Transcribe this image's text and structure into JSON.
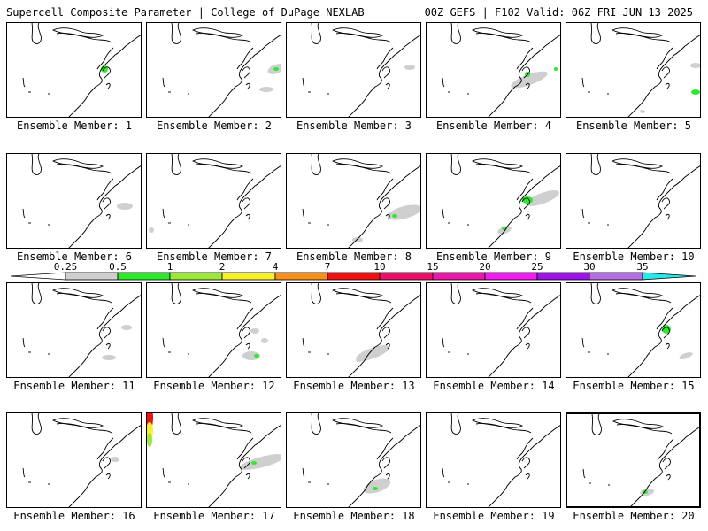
{
  "header": {
    "left_title": "Supercell Composite Parameter | College of DuPage NEXLAB",
    "right_title": "00Z GEFS | F102 Valid: 06Z FRI JUN 13 2025"
  },
  "colors": {
    "land_outline": "#000000",
    "ocean_bg": "#ffffff",
    "scp_low": "#c8c8c8"
  },
  "legend": {
    "ticks": [
      "0.25",
      "0.5",
      "1",
      "2",
      "4",
      "7",
      "10",
      "15",
      "20",
      "25",
      "30",
      "35"
    ],
    "bins": [
      {
        "color": "#cfcfcf"
      },
      {
        "color": "#2ee82e"
      },
      {
        "color": "#9be83a"
      },
      {
        "color": "#f6f12a"
      },
      {
        "color": "#f5901e"
      },
      {
        "color": "#ee1111"
      },
      {
        "color": "#e8126a"
      },
      {
        "color": "#ea1aa8"
      },
      {
        "color": "#f01ef0"
      },
      {
        "color": "#9a15e6"
      },
      {
        "color": "#b46ee0"
      },
      {
        "color": "#28e8e8"
      }
    ]
  },
  "members": [
    {
      "label": "Ensemble Member: 1"
    },
    {
      "label": "Ensemble Member: 2"
    },
    {
      "label": "Ensemble Member: 3"
    },
    {
      "label": "Ensemble Member: 4"
    },
    {
      "label": "Ensemble Member: 5"
    },
    {
      "label": "Ensemble Member: 6"
    },
    {
      "label": "Ensemble Member: 7"
    },
    {
      "label": "Ensemble Member: 8"
    },
    {
      "label": "Ensemble Member: 9"
    },
    {
      "label": "Ensemble Member: 10"
    },
    {
      "label": "Ensemble Member: 11"
    },
    {
      "label": "Ensemble Member: 12"
    },
    {
      "label": "Ensemble Member: 13"
    },
    {
      "label": "Ensemble Member: 14"
    },
    {
      "label": "Ensemble Member: 15"
    },
    {
      "label": "Ensemble Member: 16"
    },
    {
      "label": "Ensemble Member: 17"
    },
    {
      "label": "Ensemble Member: 18"
    },
    {
      "label": "Ensemble Member: 19"
    },
    {
      "label": "Ensemble Member: 20",
      "selected": true
    }
  ]
}
